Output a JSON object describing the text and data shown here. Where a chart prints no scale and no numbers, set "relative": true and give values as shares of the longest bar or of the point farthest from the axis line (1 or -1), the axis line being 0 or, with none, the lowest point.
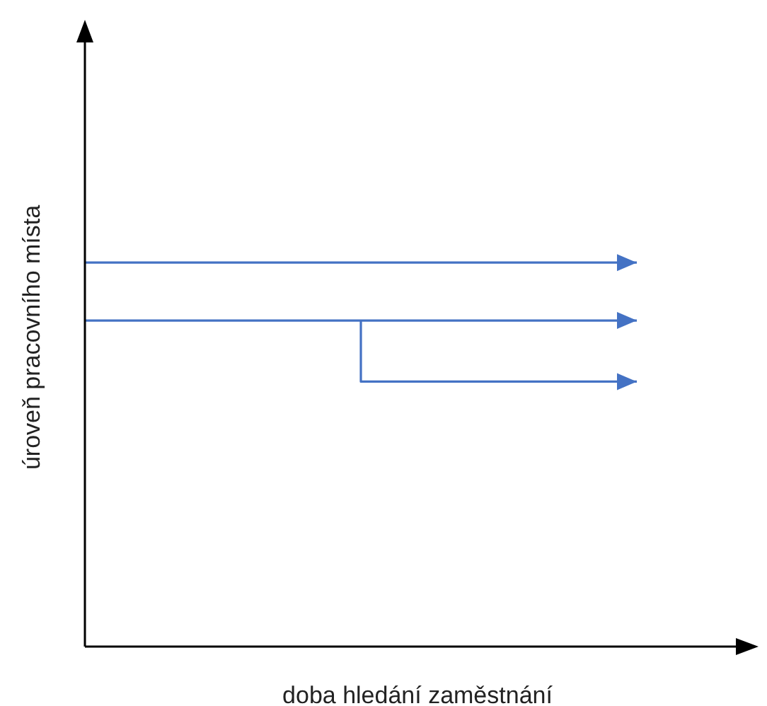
{
  "chart_data": {
    "type": "line",
    "relative": true,
    "xlabel": "doba hledání zaměstnání",
    "ylabel": "úroveň pracovního místa",
    "line_style": "solid",
    "categories": [
      null,
      null,
      null
    ],
    "series": [
      {
        "values": [
          1,
          1,
          1
        ],
        "color": "#4472c4"
      },
      {
        "values": [
          0.849,
          0.849,
          0.849
        ],
        "color": "#4472c4"
      },
      {
        "type": "step",
        "values": [
          null,
          0.849,
          0.69
        ],
        "color": "#4472c4"
      }
    ]
  }
}
